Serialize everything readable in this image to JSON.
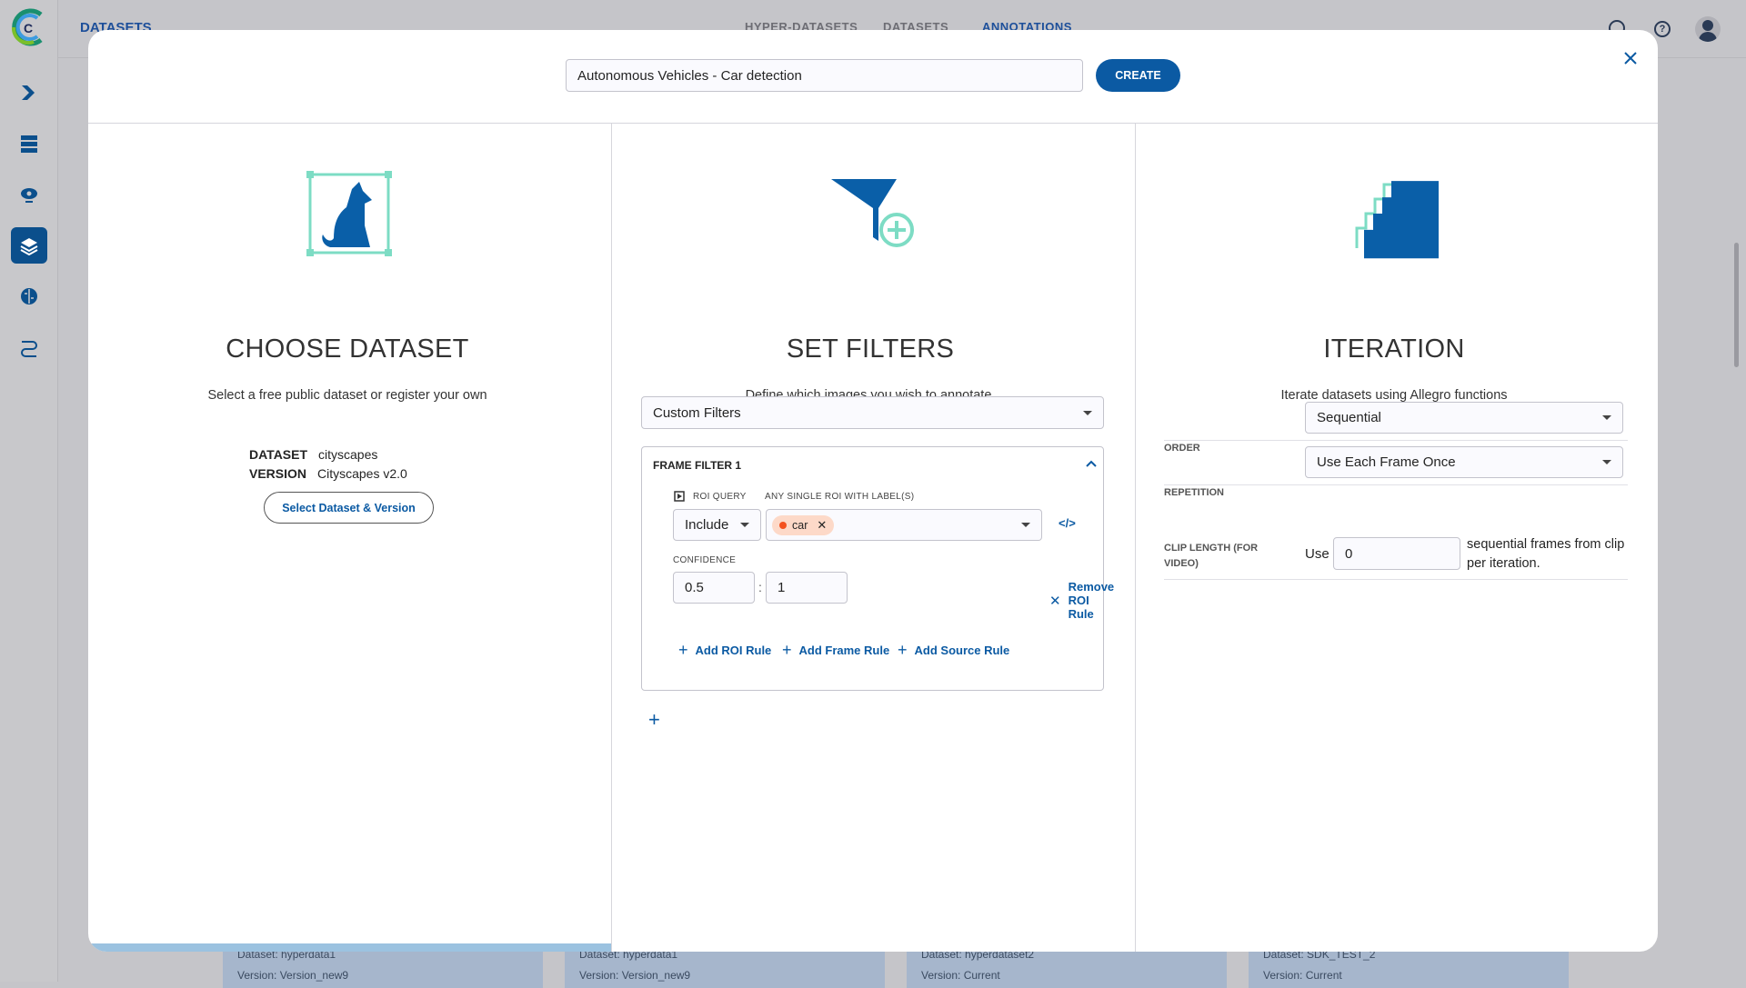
{
  "app": {
    "section_title": "DATASETS",
    "nav_tabs": [
      {
        "label": "HYPER-DATASETS",
        "active": false
      },
      {
        "label": "DATASETS",
        "active": false
      },
      {
        "label": "ANNOTATIONS",
        "active": true
      }
    ],
    "sidebar": [
      {
        "icon": "pipeline-icon"
      },
      {
        "icon": "server-icon"
      },
      {
        "icon": "cloud-gear-icon"
      },
      {
        "icon": "layers-icon",
        "active": true
      },
      {
        "icon": "brain-icon"
      },
      {
        "icon": "workflow-icon"
      }
    ],
    "topbar_icons": [
      "search-icon",
      "help-icon",
      "avatar-icon"
    ]
  },
  "background_cards": [
    {
      "dataset": "Dataset: hyperdata1",
      "version": "Version: Version_new9"
    },
    {
      "dataset": "Dataset: hyperdata1",
      "version": "Version: Version_new9"
    },
    {
      "dataset": "Dataset: hyperdataset2",
      "version": "Version: Current"
    },
    {
      "dataset": "Dataset: SDK_TEST_2",
      "version": "Version: Current"
    }
  ],
  "modal": {
    "name_value": "Autonomous Vehicles - Car detection",
    "create_label": "CREATE",
    "choose": {
      "title": "CHOOSE DATASET",
      "subtitle": "Select a free public dataset or register your own",
      "dataset_label": "DATASET",
      "dataset_value": "cityscapes",
      "version_label": "VERSION",
      "version_value": "Cityscapes v2.0",
      "button": "Select Dataset & Version"
    },
    "filters": {
      "title": "SET FILTERS",
      "subtitle": "Define which images you wish to annotate.",
      "filter_type": "Custom Filters",
      "frame_filter": {
        "title": "FRAME FILTER 1",
        "roi_query_label": "ROI QUERY",
        "roi_query_value": "Include",
        "labels_label": "ANY SINGLE ROI WITH LABEL(S)",
        "labels": [
          {
            "name": "car",
            "color": "#f4511e"
          }
        ],
        "confidence_label": "CONFIDENCE",
        "confidence_min": "0.5",
        "confidence_sep": ":",
        "confidence_max": "1",
        "remove_roi": "Remove ROI Rule",
        "add_roi": "Add ROI Rule",
        "add_frame": "Add Frame Rule",
        "add_source": "Add Source Rule"
      }
    },
    "iteration": {
      "title": "ITERATION",
      "subtitle": "Iterate datasets using Allegro functions",
      "order_label": "ORDER",
      "order_value": "Sequential",
      "repetition_label": "REPETITION",
      "repetition_value": "Use Each Frame Once",
      "clip_label": "CLIP LENGTH (FOR VIDEO)",
      "clip_prefix": "Use",
      "clip_value": "0",
      "clip_suffix": "sequential frames from clip per iteration."
    }
  },
  "colors": {
    "accent": "#0b5aa3",
    "teal": "#7ddcc4",
    "overlay": "#c5c5c9"
  }
}
